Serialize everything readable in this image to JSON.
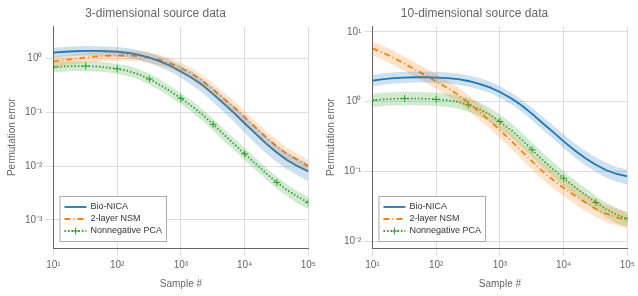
{
  "chart_data": [
    {
      "type": "line",
      "title": "3-dimensional source data",
      "x_label": "Sample #",
      "y_label": "Permutation error",
      "log": true,
      "grid": true,
      "legend": "lower left",
      "xlim": [
        10,
        100000
      ],
      "ylim": [
        0.0003,
        4.0
      ],
      "xticks": [
        {
          "value": 10,
          "label": "10¹"
        },
        {
          "value": 100,
          "label": "10²"
        },
        {
          "value": 1000,
          "label": "10³"
        },
        {
          "value": 10000,
          "label": "10⁴"
        },
        {
          "value": 100000,
          "label": "10⁵"
        }
      ],
      "yticks": [
        {
          "value": 0.001,
          "label": "10⁻³"
        },
        {
          "value": 0.01,
          "label": "10⁻²"
        },
        {
          "value": 0.1,
          "label": "10⁻¹"
        },
        {
          "value": 1,
          "label": "10⁰"
        }
      ],
      "x": [
        10,
        15,
        22,
        32,
        46,
        68,
        100,
        150,
        220,
        320,
        460,
        680,
        1000,
        1500,
        2200,
        3200,
        4600,
        6800,
        10000,
        15000,
        22000,
        32000,
        46000,
        68000,
        100000
      ],
      "series": [
        {
          "name": "Bio-NICA",
          "color": "#1f77b4",
          "line_style": "solid",
          "values": [
            1.3,
            1.35,
            1.38,
            1.4,
            1.4,
            1.38,
            1.35,
            1.28,
            1.18,
            1.05,
            0.9,
            0.74,
            0.58,
            0.44,
            0.32,
            0.22,
            0.15,
            0.098,
            0.063,
            0.04,
            0.026,
            0.018,
            0.013,
            0.01,
            0.008
          ],
          "lower": [
            1.05,
            1.1,
            1.13,
            1.15,
            1.15,
            1.13,
            1.1,
            1.04,
            0.95,
            0.83,
            0.7,
            0.57,
            0.44,
            0.32,
            0.23,
            0.155,
            0.104,
            0.067,
            0.042,
            0.026,
            0.017,
            0.012,
            0.0088,
            0.0067,
            0.0052
          ],
          "upper": [
            1.6,
            1.66,
            1.7,
            1.72,
            1.72,
            1.69,
            1.65,
            1.56,
            1.44,
            1.29,
            1.12,
            0.93,
            0.74,
            0.57,
            0.42,
            0.29,
            0.2,
            0.132,
            0.086,
            0.055,
            0.036,
            0.025,
            0.018,
            0.014,
            0.011
          ]
        },
        {
          "name": "2-layer NSM",
          "color": "#ff7f0e",
          "line_style": "dashdot",
          "values": [
            0.9,
            0.95,
            1.0,
            1.05,
            1.1,
            1.13,
            1.15,
            1.15,
            1.12,
            1.05,
            0.95,
            0.82,
            0.67,
            0.52,
            0.38,
            0.268,
            0.185,
            0.125,
            0.082,
            0.052,
            0.034,
            0.023,
            0.017,
            0.013,
            0.01
          ],
          "lower": [
            0.72,
            0.76,
            0.8,
            0.84,
            0.88,
            0.9,
            0.92,
            0.92,
            0.9,
            0.84,
            0.76,
            0.65,
            0.53,
            0.41,
            0.3,
            0.21,
            0.144,
            0.097,
            0.063,
            0.04,
            0.026,
            0.018,
            0.013,
            0.01,
            0.0078
          ],
          "upper": [
            1.12,
            1.18,
            1.24,
            1.3,
            1.36,
            1.4,
            1.43,
            1.43,
            1.39,
            1.31,
            1.19,
            1.03,
            0.84,
            0.66,
            0.49,
            0.345,
            0.24,
            0.163,
            0.107,
            0.068,
            0.044,
            0.031,
            0.022,
            0.017,
            0.013
          ]
        },
        {
          "name": "Nonnegative PCA",
          "color": "#2ca02c",
          "line_style": "dotted",
          "marker": "plus",
          "values": [
            0.7,
            0.72,
            0.73,
            0.73,
            0.72,
            0.69,
            0.65,
            0.59,
            0.51,
            0.42,
            0.33,
            0.25,
            0.183,
            0.13,
            0.09,
            0.06,
            0.04,
            0.026,
            0.017,
            0.011,
            0.0073,
            0.005,
            0.0036,
            0.0027,
            0.0021
          ],
          "lower": [
            0.56,
            0.58,
            0.59,
            0.59,
            0.58,
            0.56,
            0.52,
            0.47,
            0.41,
            0.33,
            0.26,
            0.195,
            0.142,
            0.1,
            0.069,
            0.046,
            0.03,
            0.02,
            0.013,
            0.0085,
            0.0056,
            0.0038,
            0.0028,
            0.002,
            0.0016
          ],
          "upper": [
            0.87,
            0.89,
            0.9,
            0.9,
            0.89,
            0.85,
            0.81,
            0.74,
            0.64,
            0.53,
            0.42,
            0.31,
            0.23,
            0.163,
            0.114,
            0.076,
            0.051,
            0.033,
            0.022,
            0.014,
            0.0093,
            0.0064,
            0.0046,
            0.0034,
            0.0027
          ]
        }
      ]
    },
    {
      "type": "line",
      "title": "10-dimensional source data",
      "x_label": "Sample #",
      "y_label": "Permutation error",
      "log": true,
      "grid": true,
      "legend": "lower left",
      "xlim": [
        10,
        100000
      ],
      "ylim": [
        0.008,
        12.0
      ],
      "xticks": [
        {
          "value": 10,
          "label": "10¹"
        },
        {
          "value": 100,
          "label": "10²"
        },
        {
          "value": 1000,
          "label": "10³"
        },
        {
          "value": 10000,
          "label": "10⁴"
        },
        {
          "value": 100000,
          "label": "10⁵"
        }
      ],
      "yticks": [
        {
          "value": 0.01,
          "label": "10⁻²"
        },
        {
          "value": 0.1,
          "label": "10⁻¹"
        },
        {
          "value": 1,
          "label": "10⁰"
        },
        {
          "value": 10,
          "label": "10¹"
        }
      ],
      "x": [
        10,
        15,
        22,
        32,
        46,
        68,
        100,
        150,
        220,
        320,
        460,
        680,
        1000,
        1500,
        2200,
        3200,
        4600,
        6800,
        10000,
        15000,
        22000,
        32000,
        46000,
        68000,
        100000
      ],
      "series": [
        {
          "name": "Bio-NICA",
          "color": "#1f77b4",
          "line_style": "solid",
          "values": [
            2.0,
            2.1,
            2.18,
            2.22,
            2.24,
            2.24,
            2.22,
            2.18,
            2.1,
            1.98,
            1.82,
            1.62,
            1.38,
            1.12,
            0.88,
            0.67,
            0.5,
            0.37,
            0.27,
            0.2,
            0.155,
            0.125,
            0.105,
            0.092,
            0.085
          ],
          "lower": [
            1.65,
            1.75,
            1.82,
            1.86,
            1.88,
            1.88,
            1.86,
            1.82,
            1.75,
            1.65,
            1.51,
            1.34,
            1.14,
            0.92,
            0.72,
            0.54,
            0.4,
            0.295,
            0.215,
            0.158,
            0.122,
            0.098,
            0.082,
            0.071,
            0.065
          ],
          "upper": [
            2.42,
            2.55,
            2.64,
            2.68,
            2.7,
            2.7,
            2.68,
            2.62,
            2.53,
            2.39,
            2.2,
            1.96,
            1.67,
            1.36,
            1.07,
            0.82,
            0.62,
            0.46,
            0.34,
            0.253,
            0.196,
            0.158,
            0.133,
            0.116,
            0.107
          ]
        },
        {
          "name": "2-layer NSM",
          "color": "#ff7f0e",
          "line_style": "dashdot",
          "values": [
            5.8,
            5.0,
            4.2,
            3.5,
            2.9,
            2.4,
            1.95,
            1.58,
            1.26,
            0.97,
            0.73,
            0.54,
            0.39,
            0.275,
            0.195,
            0.14,
            0.102,
            0.076,
            0.058,
            0.045,
            0.036,
            0.029,
            0.025,
            0.022,
            0.02
          ],
          "lower": [
            4.6,
            3.95,
            3.3,
            2.75,
            2.28,
            1.88,
            1.52,
            1.23,
            0.98,
            0.75,
            0.56,
            0.415,
            0.3,
            0.211,
            0.149,
            0.107,
            0.078,
            0.058,
            0.044,
            0.034,
            0.027,
            0.022,
            0.019,
            0.017,
            0.015
          ],
          "upper": [
            7.3,
            6.3,
            5.3,
            4.4,
            3.68,
            3.05,
            2.49,
            2.02,
            1.61,
            1.25,
            0.95,
            0.706,
            0.513,
            0.363,
            0.258,
            0.186,
            0.136,
            0.102,
            0.077,
            0.06,
            0.048,
            0.039,
            0.033,
            0.029,
            0.026
          ]
        },
        {
          "name": "Nonnegative PCA",
          "color": "#2ca02c",
          "line_style": "dotted",
          "marker": "plus",
          "values": [
            1.05,
            1.08,
            1.1,
            1.11,
            1.11,
            1.1,
            1.08,
            1.05,
            0.99,
            0.9,
            0.79,
            0.66,
            0.52,
            0.39,
            0.285,
            0.205,
            0.148,
            0.108,
            0.08,
            0.06,
            0.046,
            0.036,
            0.029,
            0.024,
            0.021
          ],
          "lower": [
            0.84,
            0.87,
            0.88,
            0.89,
            0.89,
            0.88,
            0.87,
            0.84,
            0.79,
            0.72,
            0.63,
            0.52,
            0.41,
            0.31,
            0.225,
            0.161,
            0.116,
            0.084,
            0.062,
            0.046,
            0.035,
            0.028,
            0.022,
            0.018,
            0.016
          ],
          "upper": [
            1.31,
            1.35,
            1.37,
            1.38,
            1.38,
            1.37,
            1.35,
            1.31,
            1.24,
            1.13,
            0.99,
            0.83,
            0.66,
            0.49,
            0.36,
            0.26,
            0.188,
            0.137,
            0.101,
            0.075,
            0.058,
            0.045,
            0.036,
            0.03,
            0.026
          ]
        }
      ]
    }
  ]
}
